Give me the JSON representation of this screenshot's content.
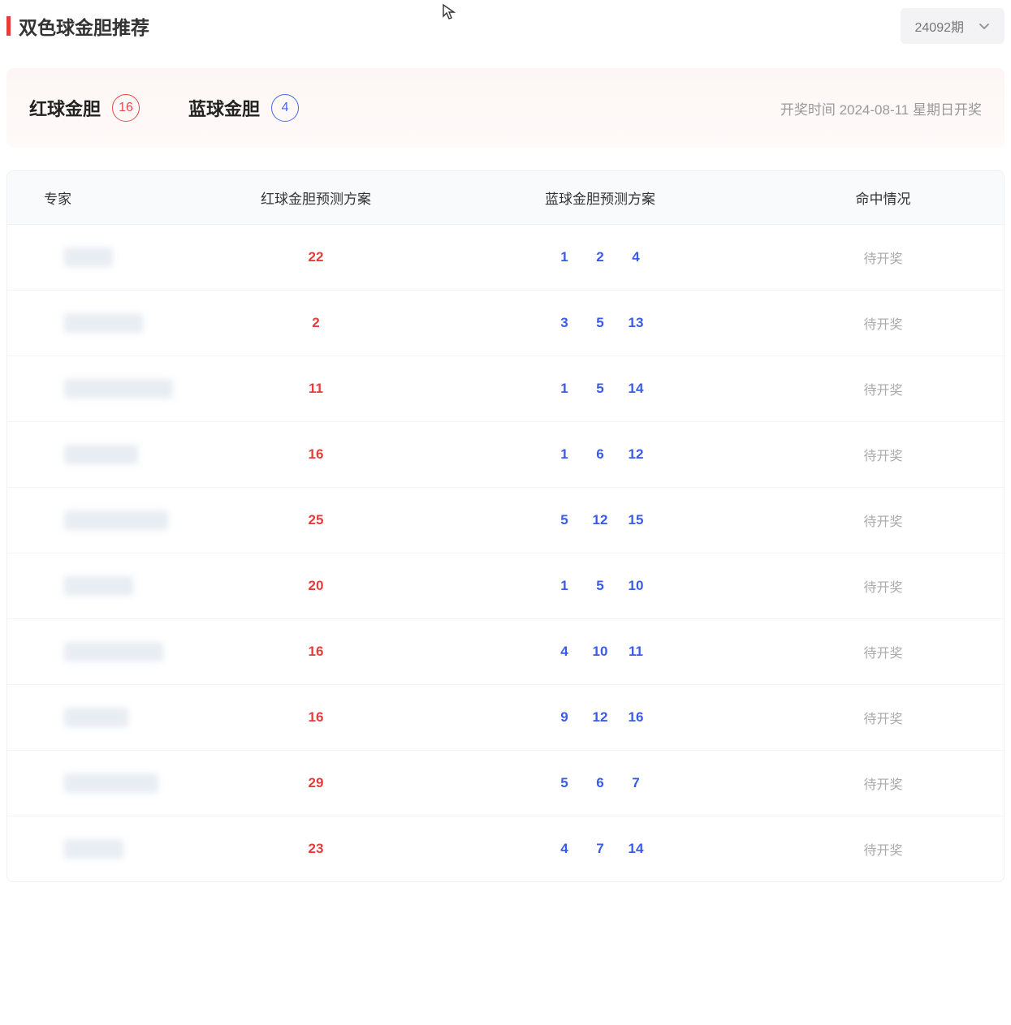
{
  "page": {
    "title": "双色球金胆推荐",
    "accent_color": "#e63c3c"
  },
  "period_select": {
    "value": "24092期"
  },
  "summary": {
    "red": {
      "label": "红球金胆",
      "number": "16"
    },
    "blue": {
      "label": "蓝球金胆",
      "number": "4"
    },
    "draw_time": "开奖时间 2024-08-11 星期日开奖"
  },
  "table": {
    "headers": {
      "expert": "专家",
      "red_plan": "红球金胆预测方案",
      "blue_plan": "蓝球金胆预测方案",
      "status": "命中情况"
    },
    "rows": [
      {
        "red": "22",
        "blue": [
          "1",
          "2",
          "4"
        ],
        "status": "待开奖"
      },
      {
        "red": "2",
        "blue": [
          "3",
          "5",
          "13"
        ],
        "status": "待开奖"
      },
      {
        "red": "11",
        "blue": [
          "1",
          "5",
          "14"
        ],
        "status": "待开奖"
      },
      {
        "red": "16",
        "blue": [
          "1",
          "6",
          "12"
        ],
        "status": "待开奖"
      },
      {
        "red": "25",
        "blue": [
          "5",
          "12",
          "15"
        ],
        "status": "待开奖"
      },
      {
        "red": "20",
        "blue": [
          "1",
          "5",
          "10"
        ],
        "status": "待开奖"
      },
      {
        "red": "16",
        "blue": [
          "4",
          "10",
          "11"
        ],
        "status": "待开奖"
      },
      {
        "red": "16",
        "blue": [
          "9",
          "12",
          "16"
        ],
        "status": "待开奖"
      },
      {
        "red": "29",
        "blue": [
          "5",
          "6",
          "7"
        ],
        "status": "待开奖"
      },
      {
        "red": "23",
        "blue": [
          "4",
          "7",
          "14"
        ],
        "status": "待开奖"
      }
    ]
  },
  "colors": {
    "red_number": "#e63c3c",
    "blue_number": "#3a5be8",
    "muted_text": "#999999",
    "status_text": "#aaaaaa",
    "header_bg": "#f9fafb",
    "summary_bg": "#fdf6f5"
  }
}
